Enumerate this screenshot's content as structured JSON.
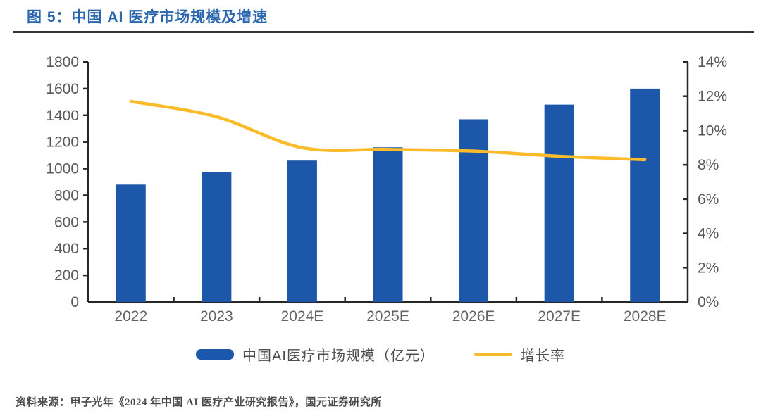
{
  "header": {
    "figure_title": "图 5：中国 AI 医疗市场规模及增速"
  },
  "chart_data": {
    "type": "bar+line",
    "categories": [
      "2022",
      "2023",
      "2024E",
      "2025E",
      "2026E",
      "2027E",
      "2028E"
    ],
    "series": [
      {
        "name": "中国AI医疗市场规模（亿元）",
        "type": "bar",
        "axis": "left",
        "values": [
          880,
          975,
          1060,
          1160,
          1370,
          1480,
          1600
        ],
        "color": "#1D57A9"
      },
      {
        "name": "增长率",
        "type": "line",
        "axis": "right",
        "values": [
          11.7,
          10.8,
          9.0,
          8.9,
          8.8,
          8.5,
          8.3
        ],
        "color": "#FBBC2C"
      }
    ],
    "left_axis": {
      "min": 0,
      "max": 1800,
      "step": 200
    },
    "right_axis": {
      "min": 0,
      "max": 14,
      "step": 2,
      "suffix": "%"
    },
    "grid": false,
    "legend_position": "bottom"
  },
  "colors": {
    "title_blue": "#2A66AE",
    "axis_line": "#262626",
    "tick_label": "#595959"
  },
  "footer": {
    "source_text": "资料来源：甲子光年《2024 年中国 AI 医疗产业研究报告》，国元证券研究所"
  }
}
